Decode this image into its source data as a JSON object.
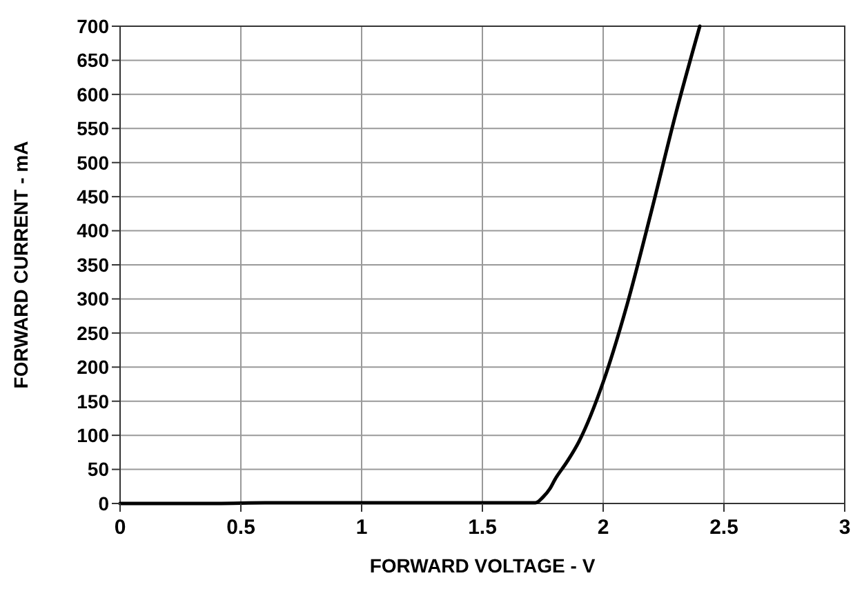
{
  "chart_data": {
    "type": "line",
    "xlabel": "FORWARD VOLTAGE - V",
    "ylabel": "FORWARD CURRENT - mA",
    "series": [
      {
        "color": "#000000",
        "x": [
          0,
          0.4,
          0.6,
          1.0,
          1.5,
          1.72,
          1.75,
          1.78,
          1.8,
          1.85,
          1.9,
          2.0,
          2.1,
          2.2,
          2.3,
          2.4
        ],
        "values": [
          0,
          0,
          1,
          1,
          1,
          1,
          9,
          22,
          35,
          61,
          91,
          178,
          293,
          429,
          571,
          700
        ]
      }
    ],
    "xlim": [
      0,
      3
    ],
    "xticks": [
      0,
      0.5,
      1,
      1.5,
      2,
      2.5,
      3
    ],
    "ylim": [
      0,
      700
    ],
    "yticks": [
      0,
      50,
      100,
      150,
      200,
      250,
      300,
      350,
      400,
      450,
      500,
      550,
      600,
      650,
      700
    ],
    "grid": true,
    "marker": "none",
    "line_style": "solid"
  }
}
